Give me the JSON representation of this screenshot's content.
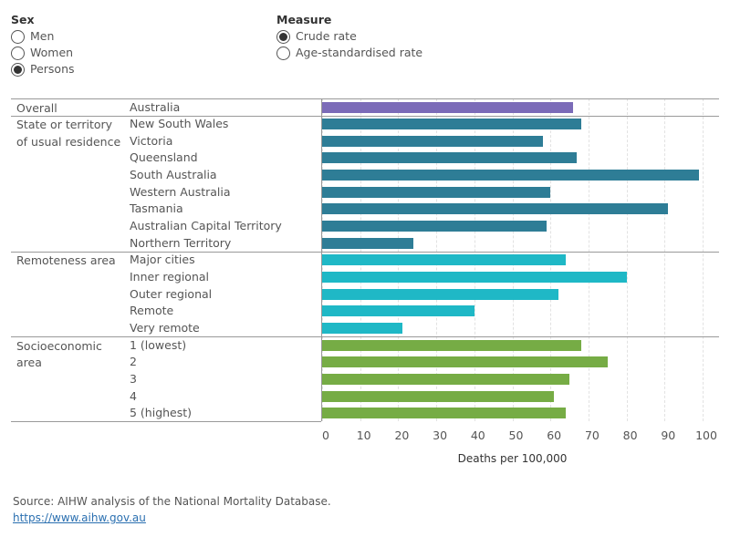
{
  "controls": [
    {
      "title": "Sex",
      "options": [
        {
          "label": "Men",
          "selected": false
        },
        {
          "label": "Women",
          "selected": false
        },
        {
          "label": "Persons",
          "selected": true
        }
      ]
    },
    {
      "title": "Measure",
      "options": [
        {
          "label": "Crude rate",
          "selected": true
        },
        {
          "label": "Age-standardised rate",
          "selected": false
        }
      ]
    }
  ],
  "chart_data": {
    "type": "bar",
    "groups": [
      {
        "name": "Overall",
        "color": "#7b6bb8",
        "categories": [
          "Australia"
        ],
        "values": [
          66
        ]
      },
      {
        "name": "State or territory of usual residence",
        "color": "#2e7d96",
        "categories": [
          "New South Wales",
          "Victoria",
          "Queensland",
          "South Australia",
          "Western Australia",
          "Tasmania",
          "Australian Capital Territory",
          "Northern Territory"
        ],
        "values": [
          68,
          58,
          67,
          99,
          60,
          91,
          59,
          24
        ]
      },
      {
        "name": "Remoteness area",
        "color": "#1fb8c6",
        "categories": [
          "Major cities",
          "Inner regional",
          "Outer regional",
          "Remote",
          "Very remote"
        ],
        "values": [
          64,
          80,
          62,
          40,
          21
        ]
      },
      {
        "name": "Socioeconomic area",
        "color": "#76ac45",
        "categories": [
          "1 (lowest)",
          "2",
          "3",
          "4",
          "5 (highest)"
        ],
        "values": [
          68,
          75,
          65,
          61,
          64
        ]
      }
    ],
    "xlim": [
      0,
      100
    ],
    "xticks": [
      0,
      10,
      20,
      30,
      40,
      50,
      60,
      70,
      80,
      90,
      100
    ],
    "xlabel": "Deaths per 100,000",
    "grid": true
  },
  "source": {
    "text": "Source: AIHW analysis of the National Mortality Database.",
    "link": "https://www.aihw.gov.au"
  }
}
